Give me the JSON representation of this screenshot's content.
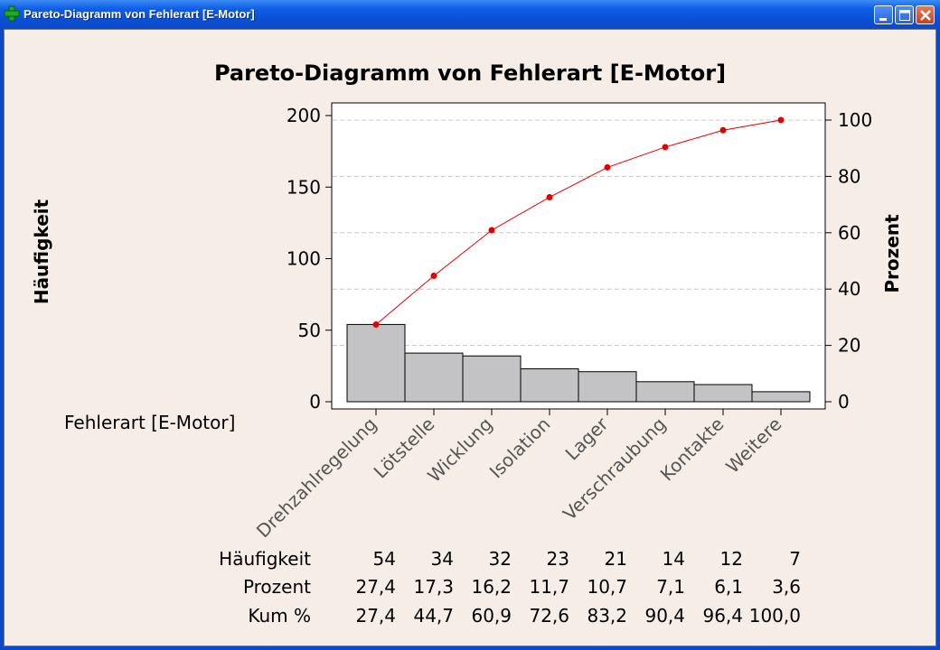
{
  "window": {
    "title": "Pareto-Diagramm von Fehlerart [E-Motor]",
    "icon": "plus-icon",
    "buttons": [
      "minimize-icon",
      "maximize-icon",
      "close-icon"
    ]
  },
  "colors": {
    "bar_fill": "#c3c2c4",
    "cumulative_line": "#e00000",
    "background": "#f6ede7",
    "plot_background": "#ffffff"
  },
  "chart_data": {
    "type": "bar",
    "title": "Pareto-Diagramm von Fehlerart [E-Motor]",
    "xlabel": "Fehlerart [E-Motor]",
    "ylabel": "Häufigkeit",
    "y2label": "Prozent",
    "ylim": [
      0,
      210
    ],
    "y2lim": [
      0,
      105
    ],
    "yticks": [
      0,
      50,
      100,
      150,
      200
    ],
    "y2ticks": [
      0,
      20,
      40,
      60,
      80,
      100
    ],
    "grid": "horizontal dashed at right-axis ticks",
    "categories": [
      "Drehzahlregelung",
      "Lötstelle",
      "Wicklung",
      "Isolation",
      "Lager",
      "Verschraubung",
      "Kontakte",
      "Weitere"
    ],
    "series": [
      {
        "name": "Häufigkeit",
        "type": "bar",
        "values": [
          54,
          34,
          32,
          23,
          21,
          14,
          12,
          7
        ]
      },
      {
        "name": "Kum %",
        "type": "line",
        "values": [
          27.4,
          44.7,
          60.9,
          72.6,
          83.2,
          90.4,
          96.4,
          100.0
        ]
      }
    ],
    "table": {
      "row_labels": [
        "Häufigkeit",
        "Prozent",
        "Kum %"
      ],
      "rows": [
        [
          "54",
          "34",
          "32",
          "23",
          "21",
          "14",
          "12",
          "7"
        ],
        [
          "27,4",
          "17,3",
          "16,2",
          "11,7",
          "10,7",
          "7,1",
          "6,1",
          "3,6"
        ],
        [
          "27,4",
          "44,7",
          "60,9",
          "72,6",
          "83,2",
          "90,4",
          "96,4",
          "100,0"
        ]
      ]
    }
  }
}
